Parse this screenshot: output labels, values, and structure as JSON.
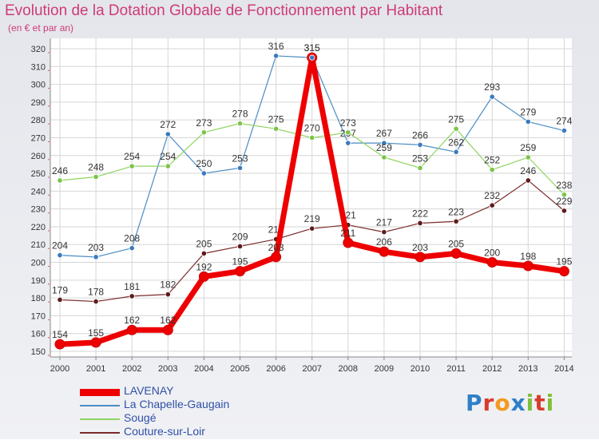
{
  "title": "Evolution de la Dotation Globale de Fonctionnement par Habitant",
  "subtitle": "(en € et par an)",
  "logo": {
    "text": "Proxiti",
    "letters": [
      {
        "char": "P",
        "color": "#2f7fc8"
      },
      {
        "char": "r",
        "color": "#d93b2b"
      },
      {
        "char": "o",
        "color": "#f39a1f"
      },
      {
        "char": "x",
        "color": "#2f7fc8"
      },
      {
        "char": "i",
        "color": "#7fbf3a"
      },
      {
        "char": "t",
        "color": "#d93b2b"
      },
      {
        "char": "i",
        "color": "#7fbf3a"
      }
    ]
  },
  "chart_data": {
    "type": "line",
    "x": [
      "2000",
      "2001",
      "2002",
      "2003",
      "2004",
      "2005",
      "2006",
      "2007",
      "2008",
      "2009",
      "2010",
      "2011",
      "2012",
      "2013",
      "2014"
    ],
    "ylim": [
      150,
      320
    ],
    "yticks": [
      150,
      160,
      170,
      180,
      190,
      200,
      210,
      220,
      230,
      240,
      250,
      260,
      270,
      280,
      290,
      300,
      310,
      320
    ],
    "grid": true,
    "legend_position": "bottom-left",
    "series": [
      {
        "name": "La Chapelle-Gaugain",
        "color": "#4a8cc4",
        "point_color": "#3a7bbf",
        "width": 1.2,
        "values": [
          204,
          203,
          208,
          272,
          250,
          253,
          316,
          315,
          267,
          267,
          266,
          262,
          293,
          279,
          274
        ]
      },
      {
        "name": "Sougé",
        "color": "#8fd460",
        "point_color": "#7cc34a",
        "width": 1.2,
        "values": [
          246,
          248,
          254,
          254,
          273,
          278,
          275,
          270,
          273,
          259,
          253,
          275,
          252,
          259,
          238
        ]
      },
      {
        "name": "Couture-sur-Loir",
        "color": "#7a2a2a",
        "point_color": "#5e1a1a",
        "width": 1.2,
        "values": [
          179,
          178,
          181,
          182,
          205,
          209,
          213,
          219,
          221,
          217,
          222,
          223,
          232,
          246,
          229
        ]
      },
      {
        "name": "LAVENAY",
        "color": "#ee0000",
        "point_color": "#ee0000",
        "width": 7,
        "values": [
          154,
          155,
          162,
          162,
          192,
          195,
          203,
          315,
          211,
          206,
          203,
          205,
          200,
          198,
          195
        ]
      }
    ]
  }
}
